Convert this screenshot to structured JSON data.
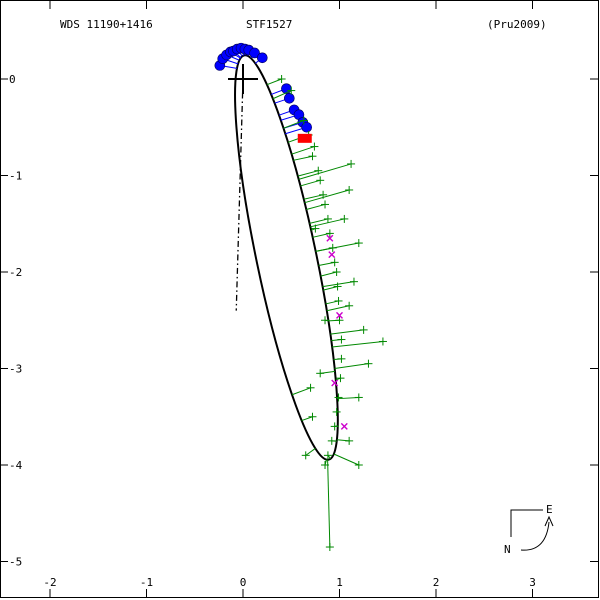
{
  "chart_data": {
    "type": "scatter",
    "title_left": "WDS 11190+1416",
    "title_center": "STF1527",
    "title_right": "(Pru2009)",
    "xlabel": "",
    "ylabel": "",
    "xlim": [
      -2.2,
      3.6
    ],
    "ylim": [
      -5.3,
      0.35
    ],
    "x_ticks": [
      "-2",
      "-1",
      "0",
      "1",
      "2",
      "3"
    ],
    "x_tick_values": [
      -2,
      -1,
      0,
      1,
      2,
      3
    ],
    "y_ticks": [
      "0",
      "-1",
      "-2",
      "-3",
      "-4",
      "-5"
    ],
    "y_tick_values": [
      0,
      -1,
      -2,
      -3,
      -4,
      -5
    ],
    "grid": false,
    "colors": {
      "orbit": "#000000",
      "interferometric": "#0000ff",
      "micrometric": "#008800",
      "photographic": "#cc00cc",
      "special": "#ff0000"
    },
    "primary_star": {
      "x": 0.0,
      "y": 0.0
    },
    "orbit_ellipse": {
      "center": [
        0.45,
        -1.85
      ],
      "semi_axes": [
        0.31,
        2.14
      ],
      "angle_deg": 11.8
    },
    "line_of_nodes": [
      [
        0.0,
        0.0
      ],
      [
        -0.07,
        -2.4
      ]
    ],
    "series": [
      {
        "marker": "circle",
        "points": [
          [
            -0.24,
            0.14
          ],
          [
            -0.21,
            0.21
          ],
          [
            -0.17,
            0.25
          ],
          [
            -0.13,
            0.28
          ],
          [
            -0.1,
            0.29
          ],
          [
            -0.06,
            0.31
          ],
          [
            -0.02,
            0.32
          ],
          [
            0.02,
            0.31
          ],
          [
            0.06,
            0.3
          ],
          [
            0.12,
            0.27
          ],
          [
            0.2,
            0.22
          ],
          [
            0.45,
            -0.1
          ],
          [
            0.48,
            -0.2
          ],
          [
            0.53,
            -0.32
          ],
          [
            0.58,
            -0.37
          ],
          [
            0.62,
            -0.45
          ],
          [
            0.66,
            -0.5
          ]
        ]
      },
      {
        "marker": "plus",
        "points": [
          [
            0.4,
            0.0
          ],
          [
            0.5,
            -0.12
          ],
          [
            0.63,
            -0.43
          ],
          [
            0.68,
            -0.58
          ],
          [
            0.74,
            -0.7
          ],
          [
            0.72,
            -0.8
          ],
          [
            0.78,
            -0.95
          ],
          [
            0.8,
            -1.05
          ],
          [
            0.83,
            -1.2
          ],
          [
            0.85,
            -1.3
          ],
          [
            0.88,
            -1.45
          ],
          [
            0.9,
            -1.6
          ],
          [
            0.93,
            -1.75
          ],
          [
            0.95,
            -1.9
          ],
          [
            0.97,
            -2.0
          ],
          [
            0.98,
            -2.15
          ],
          [
            0.99,
            -2.3
          ],
          [
            1.0,
            -2.5
          ],
          [
            1.02,
            -2.7
          ],
          [
            1.02,
            -2.9
          ],
          [
            1.01,
            -3.1
          ],
          [
            0.99,
            -3.3
          ],
          [
            0.97,
            -3.45
          ],
          [
            0.95,
            -3.6
          ],
          [
            0.92,
            -3.75
          ],
          [
            0.88,
            -3.9
          ],
          [
            0.85,
            -4.0
          ],
          [
            1.12,
            -0.88
          ],
          [
            1.1,
            -1.15
          ],
          [
            1.05,
            -1.45
          ],
          [
            1.2,
            -1.7
          ],
          [
            1.15,
            -2.1
          ],
          [
            1.25,
            -2.6
          ],
          [
            1.45,
            -2.72
          ],
          [
            1.3,
            -2.95
          ],
          [
            0.7,
            -3.2
          ],
          [
            1.2,
            -3.3
          ],
          [
            0.72,
            -3.5
          ],
          [
            1.1,
            -3.75
          ],
          [
            1.2,
            -4.0
          ],
          [
            0.9,
            -4.85
          ],
          [
            0.65,
            -3.9
          ],
          [
            0.8,
            -3.05
          ],
          [
            0.85,
            -2.5
          ],
          [
            1.1,
            -2.35
          ],
          [
            0.75,
            -1.55
          ]
        ]
      },
      {
        "marker": "cross",
        "points": [
          [
            0.9,
            -1.65
          ],
          [
            0.92,
            -1.82
          ],
          [
            1.0,
            -2.45
          ],
          [
            0.95,
            -3.15
          ],
          [
            1.05,
            -3.6
          ]
        ]
      },
      {
        "marker": "square",
        "points": [
          [
            0.64,
            -0.62
          ]
        ]
      }
    ]
  },
  "compass": {
    "east_label": "E",
    "north_label": "N"
  }
}
